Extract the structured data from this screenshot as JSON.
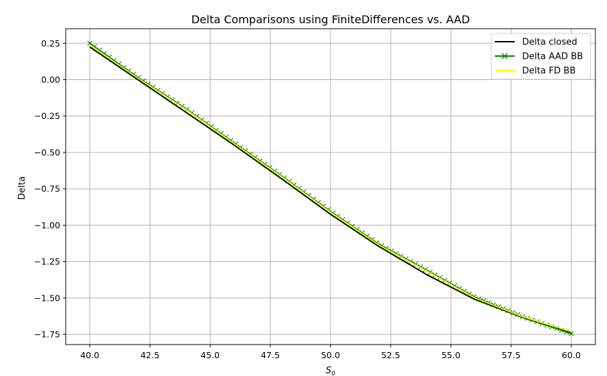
{
  "chart_data": {
    "type": "line",
    "title": "Delta Comparisons using FiniteDifferences vs. AAD",
    "xlabel": "S",
    "xlabel_sub": "0",
    "ylabel": "Delta",
    "xlim": [
      39.0,
      61.0
    ],
    "ylim": [
      -1.82,
      0.35
    ],
    "xticks": [
      40.0,
      42.5,
      45.0,
      47.5,
      50.0,
      52.5,
      55.0,
      57.5,
      60.0
    ],
    "xtick_labels": [
      "40.0",
      "42.5",
      "45.0",
      "47.5",
      "50.0",
      "52.5",
      "55.0",
      "57.5",
      "60.0"
    ],
    "yticks": [
      0.25,
      0.0,
      -0.25,
      -0.5,
      -0.75,
      -1.0,
      -1.25,
      -1.5,
      -1.75
    ],
    "ytick_labels": [
      "0.25",
      "0.00",
      "−0.25",
      "−0.50",
      "−0.75",
      "−1.00",
      "−1.25",
      "−1.50",
      "−1.75"
    ],
    "grid": true,
    "legend_position": "top-right",
    "x": [
      40,
      42,
      44,
      46,
      48,
      50,
      52,
      54,
      56,
      58,
      60
    ],
    "series": [
      {
        "name": "Delta closed",
        "color": "#000000",
        "marker": "none",
        "values": [
          0.225,
          0.0,
          -0.225,
          -0.45,
          -0.685,
          -0.925,
          -1.145,
          -1.34,
          -1.51,
          -1.635,
          -1.74
        ]
      },
      {
        "name": "Delta AAD BB",
        "color": "#008000",
        "marker": "x",
        "values": [
          0.25,
          0.015,
          -0.2,
          -0.435,
          -0.665,
          -0.905,
          -1.13,
          -1.31,
          -1.495,
          -1.63,
          -1.745
        ]
      },
      {
        "name": "Delta FD BB",
        "color": "#ffff00",
        "marker": "none",
        "values": [
          0.24,
          0.01,
          -0.205,
          -0.44,
          -0.67,
          -0.91,
          -1.135,
          -1.315,
          -1.5,
          -1.63,
          -1.73
        ]
      }
    ]
  }
}
